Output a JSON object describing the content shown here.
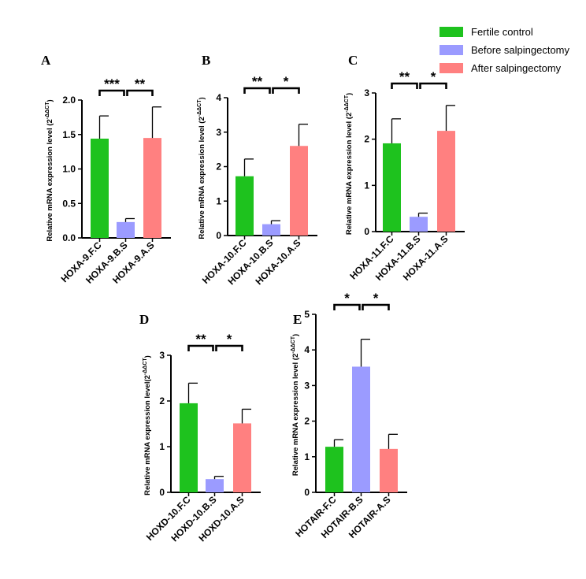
{
  "legend": [
    {
      "label": "Fertile control",
      "color": "#1ec21e"
    },
    {
      "label": "Before salpingectomy",
      "color": "#9b9bff"
    },
    {
      "label": "After salpingectomy",
      "color": "#ff8080"
    }
  ],
  "chart_data": [
    {
      "type": "bar",
      "panel": "A",
      "categories": [
        "HOXA-9.F.C",
        "HOXA-9.B.S",
        "HOXA-9.A.S"
      ],
      "values": [
        1.44,
        0.23,
        1.45
      ],
      "errors": [
        0.33,
        0.05,
        0.45
      ],
      "ylabel_main": "Relative mRNA expression level (2",
      "ylabel_sup": "-ΔΔCT",
      "ylabel_end": ")",
      "ylim": [
        0,
        2.0
      ],
      "yticks": [
        "0.0",
        "0.5",
        "1.0",
        "1.5",
        "2.0"
      ],
      "significance": [
        {
          "from": 0,
          "to": 1,
          "label": "***"
        },
        {
          "from": 1,
          "to": 2,
          "label": "**"
        }
      ]
    },
    {
      "type": "bar",
      "panel": "B",
      "categories": [
        "HOXA-10.F.C",
        "HOXA-10.B.S",
        "HOXA-10.A.S"
      ],
      "values": [
        1.72,
        0.33,
        2.6
      ],
      "errors": [
        0.5,
        0.1,
        0.63
      ],
      "ylabel_main": "Relative mRNA expression level (2",
      "ylabel_sup": "-ΔΔCT",
      "ylabel_end": ")",
      "ylim": [
        0,
        4
      ],
      "yticks": [
        "0",
        "1",
        "2",
        "3",
        "4"
      ],
      "significance": [
        {
          "from": 0,
          "to": 1,
          "label": "**"
        },
        {
          "from": 1,
          "to": 2,
          "label": "*"
        }
      ]
    },
    {
      "type": "bar",
      "panel": "C",
      "categories": [
        "HOXA-11.F.C",
        "HOXA-11.B.S",
        "HOXA-11.A.S"
      ],
      "values": [
        1.91,
        0.32,
        2.18
      ],
      "errors": [
        0.53,
        0.08,
        0.55
      ],
      "ylabel_main": "Relative mRNA expression level (2",
      "ylabel_sup": "-ΔΔCT",
      "ylabel_end": ")",
      "ylim": [
        0,
        3
      ],
      "yticks": [
        "0",
        "1",
        "2",
        "3"
      ],
      "significance": [
        {
          "from": 0,
          "to": 1,
          "label": "**"
        },
        {
          "from": 1,
          "to": 2,
          "label": "*"
        }
      ]
    },
    {
      "type": "bar",
      "panel": "D",
      "categories": [
        "HOXD-10.F.C",
        "HOXD-10.B.S",
        "HOXD-10.A.S"
      ],
      "values": [
        1.95,
        0.29,
        1.51
      ],
      "errors": [
        0.44,
        0.06,
        0.31
      ],
      "ylabel_main": "Relative mRNA expression level(2",
      "ylabel_sup": "-ΔΔCT",
      "ylabel_end": ")",
      "ylim": [
        0,
        3
      ],
      "yticks": [
        "0",
        "1",
        "2",
        "3"
      ],
      "significance": [
        {
          "from": 0,
          "to": 1,
          "label": "**"
        },
        {
          "from": 1,
          "to": 2,
          "label": "*"
        }
      ]
    },
    {
      "type": "bar",
      "panel": "E",
      "categories": [
        "HOTAIR-F.C",
        "HOTAIR-B.S",
        "HOTAIR-A.S"
      ],
      "values": [
        1.28,
        3.53,
        1.22
      ],
      "errors": [
        0.2,
        0.77,
        0.41
      ],
      "ylabel_main": "Relative mRNA expression level (2",
      "ylabel_sup": "-ΔΔCT",
      "ylabel_end": ")",
      "ylim": [
        0,
        5
      ],
      "yticks": [
        "0",
        "1",
        "2",
        "3",
        "4",
        "5"
      ],
      "significance": [
        {
          "from": 0,
          "to": 1,
          "label": "*"
        },
        {
          "from": 1,
          "to": 2,
          "label": "*"
        }
      ]
    }
  ]
}
